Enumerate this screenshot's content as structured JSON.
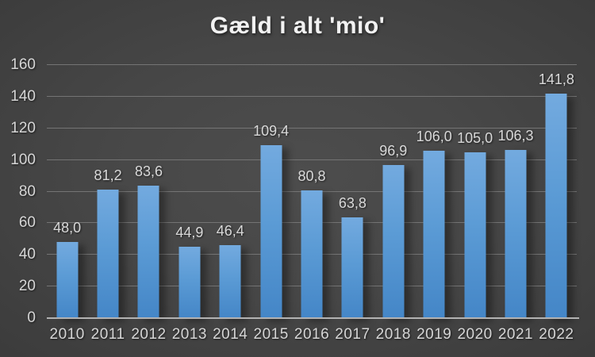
{
  "title": "Gæld i alt 'mio'",
  "colors": {
    "background_center": "#4d4d4d",
    "background_edge": "#1f1f1f",
    "bar_fill": "#5b9bd5",
    "bar_fill_light": "#73aadf",
    "bar_fill_dark": "#4486c7",
    "grid_line": "#747474",
    "axis_line": "#b2b2b2",
    "label_text": "#d9d9d9",
    "title_text": "#f2f2f2"
  },
  "chart_data": {
    "type": "bar",
    "title": "Gæld i alt 'mio'",
    "categories": [
      "2010",
      "2011",
      "2012",
      "2013",
      "2014",
      "2015",
      "2016",
      "2017",
      "2018",
      "2019",
      "2020",
      "2021",
      "2022"
    ],
    "values": [
      48.0,
      81.2,
      83.6,
      44.9,
      46.4,
      109.4,
      80.8,
      63.8,
      96.9,
      106.0,
      105.0,
      106.3,
      141.8
    ],
    "value_labels": [
      "48,0",
      "81,2",
      "83,6",
      "44,9",
      "46,4",
      "109,4",
      "80,8",
      "63,8",
      "96,9",
      "106,0",
      "105,0",
      "106,3",
      "141,8"
    ],
    "xlabel": "",
    "ylabel": "",
    "ylim": [
      0,
      160
    ],
    "ytick_step": 20,
    "yticks": [
      "0",
      "20",
      "40",
      "60",
      "80",
      "100",
      "120",
      "140",
      "160"
    ],
    "grid": true,
    "legend_position": "none",
    "series_name": "Gæld i alt",
    "decimal_separator": ","
  }
}
